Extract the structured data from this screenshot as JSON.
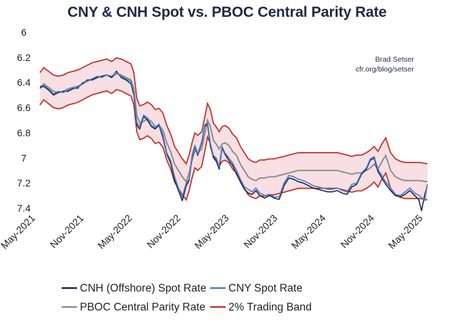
{
  "chart_data": {
    "type": "line",
    "title": "CNY & CNH Spot vs. PBOC Central Parity Rate",
    "annotation": [
      "Brad Setser",
      "cfr.org/blog/setser"
    ],
    "y_axis": {
      "ticks": [
        "6",
        "6.2",
        "6.4",
        "6.6",
        "6.8",
        "7",
        "7.2",
        "7.4"
      ],
      "ylim": [
        6.0,
        7.45
      ],
      "inverted": true
    },
    "x_axis": {
      "ticks": [
        "May-2021",
        "Nov-2021",
        "May-2022",
        "Nov-2022",
        "May-2023",
        "Nov-2023",
        "May-2024",
        "Nov-2024",
        "May-2025"
      ],
      "range": [
        2021.33,
        2025.33
      ]
    },
    "colors": {
      "cnh": "#1b2a4a",
      "cny": "#4a7dc2",
      "parity": "#8f8f8f",
      "band": "#c0392b",
      "band_fill": "#f7dfe4",
      "title": "#1f2a44"
    },
    "legend": [
      {
        "key": "cnh",
        "label": "CNH (Offshore) Spot Rate"
      },
      {
        "key": "cny",
        "label": "CNY Spot Rate"
      },
      {
        "key": "parity",
        "label": "PBOC Central Parity Rate"
      },
      {
        "key": "band",
        "label": "2% Trading Band"
      }
    ],
    "parity": {
      "t": [
        2021.33,
        2021.37,
        2021.42,
        2021.47,
        2021.52,
        2021.57,
        2021.62,
        2021.67,
        2021.72,
        2021.77,
        2021.82,
        2021.87,
        2021.92,
        2021.97,
        2022.02,
        2022.07,
        2022.12,
        2022.17,
        2022.22,
        2022.27,
        2022.3,
        2022.33,
        2022.36,
        2022.4,
        2022.44,
        2022.48,
        2022.52,
        2022.56,
        2022.6,
        2022.64,
        2022.68,
        2022.72,
        2022.76,
        2022.8,
        2022.84,
        2022.87,
        2022.9,
        2022.93,
        2022.96,
        2023.0,
        2023.03,
        2023.06,
        2023.09,
        2023.12,
        2023.15,
        2023.18,
        2023.21,
        2023.24,
        2023.28,
        2023.32,
        2023.36,
        2023.4,
        2023.44,
        2023.48,
        2023.52,
        2023.56,
        2023.6,
        2023.65,
        2023.7,
        2023.75,
        2023.8,
        2023.85,
        2023.9,
        2023.95,
        2024.0,
        2024.05,
        2024.1,
        2024.15,
        2024.2,
        2024.25,
        2024.3,
        2024.35,
        2024.4,
        2024.45,
        2024.5,
        2024.55,
        2024.6,
        2024.65,
        2024.7,
        2024.74,
        2024.78,
        2024.82,
        2024.86,
        2024.9,
        2024.95,
        2025.0,
        2025.05,
        2025.1,
        2025.15,
        2025.2,
        2025.25,
        2025.33
      ],
      "v": [
        6.45,
        6.41,
        6.44,
        6.47,
        6.48,
        6.47,
        6.45,
        6.44,
        6.43,
        6.41,
        6.39,
        6.37,
        6.36,
        6.35,
        6.34,
        6.36,
        6.33,
        6.34,
        6.36,
        6.38,
        6.45,
        6.66,
        6.72,
        6.71,
        6.69,
        6.71,
        6.75,
        6.74,
        6.78,
        6.88,
        6.95,
        7.05,
        7.1,
        7.15,
        7.19,
        7.12,
        7.02,
        6.94,
        6.96,
        6.93,
        6.82,
        6.7,
        6.75,
        6.86,
        6.89,
        6.93,
        6.89,
        6.88,
        6.9,
        6.95,
        6.98,
        7.05,
        7.1,
        7.15,
        7.17,
        7.18,
        7.16,
        7.16,
        7.15,
        7.15,
        7.14,
        7.13,
        7.12,
        7.11,
        7.1,
        7.1,
        7.1,
        7.1,
        7.1,
        7.1,
        7.1,
        7.1,
        7.1,
        7.11,
        7.12,
        7.13,
        7.12,
        7.12,
        7.1,
        7.08,
        7.05,
        7.09,
        7.03,
        6.98,
        7.1,
        7.15,
        7.17,
        7.18,
        7.18,
        7.18,
        7.18,
        7.19
      ]
    },
    "band_pct": 2,
    "cny": {
      "t": [
        2021.33,
        2021.37,
        2021.42,
        2021.47,
        2021.52,
        2021.57,
        2021.62,
        2021.67,
        2021.72,
        2021.77,
        2021.82,
        2021.87,
        2021.92,
        2021.97,
        2022.02,
        2022.07,
        2022.12,
        2022.17,
        2022.22,
        2022.27,
        2022.3,
        2022.33,
        2022.36,
        2022.4,
        2022.44,
        2022.48,
        2022.52,
        2022.56,
        2022.6,
        2022.64,
        2022.68,
        2022.72,
        2022.76,
        2022.8,
        2022.84,
        2022.87,
        2022.9,
        2022.93,
        2022.96,
        2023.0,
        2023.03,
        2023.06,
        2023.09,
        2023.12,
        2023.15,
        2023.18,
        2023.21,
        2023.24,
        2023.28,
        2023.32,
        2023.36,
        2023.4,
        2023.44,
        2023.48,
        2023.52,
        2023.56,
        2023.6,
        2023.65,
        2023.7,
        2023.75,
        2023.8,
        2023.85,
        2023.9,
        2023.95,
        2024.0,
        2024.05,
        2024.1,
        2024.15,
        2024.2,
        2024.25,
        2024.3,
        2024.35,
        2024.4,
        2024.45,
        2024.5,
        2024.55,
        2024.6,
        2024.65,
        2024.7,
        2024.74,
        2024.78,
        2024.82,
        2024.86,
        2024.9,
        2024.95,
        2025.0,
        2025.05,
        2025.1,
        2025.15,
        2025.2,
        2025.25,
        2025.3,
        2025.33
      ],
      "v": [
        6.43,
        6.42,
        6.45,
        6.49,
        6.47,
        6.48,
        6.46,
        6.44,
        6.45,
        6.4,
        6.39,
        6.37,
        6.35,
        6.36,
        6.34,
        6.35,
        6.32,
        6.35,
        6.37,
        6.39,
        6.48,
        6.72,
        6.75,
        6.66,
        6.68,
        6.74,
        6.76,
        6.73,
        6.82,
        6.96,
        7.02,
        7.15,
        7.24,
        7.31,
        7.2,
        7.17,
        6.98,
        6.9,
        6.97,
        6.87,
        6.74,
        6.72,
        6.89,
        6.98,
        7.0,
        7.07,
        6.91,
        6.96,
        7.0,
        7.04,
        7.1,
        7.17,
        7.23,
        7.25,
        7.27,
        7.24,
        7.28,
        7.3,
        7.29,
        7.31,
        7.31,
        7.2,
        7.14,
        7.15,
        7.17,
        7.18,
        7.2,
        7.22,
        7.23,
        7.24,
        7.25,
        7.25,
        7.24,
        7.26,
        7.27,
        7.21,
        7.2,
        7.12,
        7.08,
        7.01,
        6.99,
        7.09,
        7.14,
        7.19,
        7.24,
        7.29,
        7.3,
        7.27,
        7.24,
        7.28,
        7.3,
        7.34,
        7.21
      ]
    },
    "cnh": {
      "t": [
        2021.33,
        2021.37,
        2021.42,
        2021.47,
        2021.52,
        2021.57,
        2021.62,
        2021.67,
        2021.72,
        2021.77,
        2021.82,
        2021.87,
        2021.92,
        2021.97,
        2022.02,
        2022.07,
        2022.12,
        2022.17,
        2022.22,
        2022.27,
        2022.3,
        2022.33,
        2022.36,
        2022.4,
        2022.44,
        2022.48,
        2022.52,
        2022.56,
        2022.6,
        2022.64,
        2022.68,
        2022.72,
        2022.76,
        2022.8,
        2022.84,
        2022.87,
        2022.9,
        2022.93,
        2022.96,
        2023.0,
        2023.03,
        2023.06,
        2023.09,
        2023.12,
        2023.15,
        2023.18,
        2023.21,
        2023.24,
        2023.28,
        2023.32,
        2023.36,
        2023.4,
        2023.44,
        2023.48,
        2023.52,
        2023.56,
        2023.6,
        2023.65,
        2023.7,
        2023.75,
        2023.8,
        2023.85,
        2023.9,
        2023.95,
        2024.0,
        2024.05,
        2024.1,
        2024.15,
        2024.2,
        2024.25,
        2024.3,
        2024.35,
        2024.4,
        2024.45,
        2024.5,
        2024.55,
        2024.6,
        2024.65,
        2024.7,
        2024.74,
        2024.78,
        2024.82,
        2024.86,
        2024.9,
        2024.95,
        2025.0,
        2025.05,
        2025.1,
        2025.15,
        2025.2,
        2025.24,
        2025.27,
        2025.3,
        2025.33
      ],
      "v": [
        6.44,
        6.43,
        6.46,
        6.5,
        6.48,
        6.47,
        6.47,
        6.45,
        6.44,
        6.41,
        6.38,
        6.38,
        6.36,
        6.35,
        6.34,
        6.36,
        6.31,
        6.36,
        6.38,
        6.41,
        6.5,
        6.74,
        6.77,
        6.67,
        6.7,
        6.75,
        6.77,
        6.74,
        6.84,
        6.97,
        7.04,
        7.18,
        7.26,
        7.34,
        7.22,
        7.18,
        6.99,
        6.91,
        6.98,
        6.88,
        6.75,
        6.73,
        6.91,
        6.99,
        7.02,
        7.09,
        6.92,
        6.97,
        7.02,
        7.06,
        7.13,
        7.19,
        7.25,
        7.28,
        7.29,
        7.26,
        7.3,
        7.32,
        7.3,
        7.32,
        7.33,
        7.22,
        7.16,
        7.17,
        7.19,
        7.2,
        7.22,
        7.24,
        7.25,
        7.26,
        7.27,
        7.27,
        7.26,
        7.28,
        7.29,
        7.23,
        7.21,
        7.13,
        7.09,
        7.02,
        7.0,
        7.11,
        7.16,
        7.21,
        7.26,
        7.3,
        7.31,
        7.29,
        7.26,
        7.3,
        7.33,
        7.42,
        7.3,
        7.22
      ]
    }
  }
}
